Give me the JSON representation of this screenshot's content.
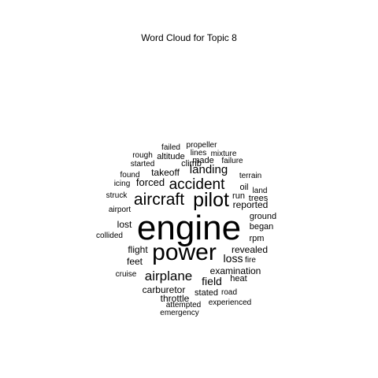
{
  "chart_data": {
    "type": "wordcloud",
    "title": "Word Cloud for Topic 8",
    "words": [
      {
        "text": "engine",
        "weight": 100
      },
      {
        "text": "power",
        "weight": 70
      },
      {
        "text": "pilot",
        "weight": 55
      },
      {
        "text": "aircraft",
        "weight": 50
      },
      {
        "text": "accident",
        "weight": 45
      },
      {
        "text": "airplane",
        "weight": 40
      },
      {
        "text": "landing",
        "weight": 35
      },
      {
        "text": "field",
        "weight": 32
      },
      {
        "text": "forced",
        "weight": 30
      },
      {
        "text": "loss",
        "weight": 30
      },
      {
        "text": "takeoff",
        "weight": 25
      },
      {
        "text": "examination",
        "weight": 25
      },
      {
        "text": "revealed",
        "weight": 25
      },
      {
        "text": "carburetor",
        "weight": 25
      },
      {
        "text": "flight",
        "weight": 24
      },
      {
        "text": "feet",
        "weight": 24
      },
      {
        "text": "lost",
        "weight": 24
      },
      {
        "text": "throttle",
        "weight": 24
      },
      {
        "text": "reported",
        "weight": 22
      },
      {
        "text": "run",
        "weight": 22
      },
      {
        "text": "stated",
        "weight": 22
      },
      {
        "text": "made",
        "weight": 20
      },
      {
        "text": "ground",
        "weight": 20
      },
      {
        "text": "began",
        "weight": 20
      },
      {
        "text": "heat",
        "weight": 20
      },
      {
        "text": "trees",
        "weight": 20
      },
      {
        "text": "oil",
        "weight": 20
      },
      {
        "text": "rpm",
        "weight": 20
      },
      {
        "text": "altitude",
        "weight": 20
      },
      {
        "text": "climb",
        "weight": 19
      },
      {
        "text": "started",
        "weight": 18
      },
      {
        "text": "rough",
        "weight": 18
      },
      {
        "text": "failed",
        "weight": 18
      },
      {
        "text": "propeller",
        "weight": 18
      },
      {
        "text": "lines",
        "weight": 18
      },
      {
        "text": "mixture",
        "weight": 18
      },
      {
        "text": "failure",
        "weight": 18
      },
      {
        "text": "terrain",
        "weight": 18
      },
      {
        "text": "land",
        "weight": 18
      },
      {
        "text": "found",
        "weight": 18
      },
      {
        "text": "icing",
        "weight": 18
      },
      {
        "text": "struck",
        "weight": 18
      },
      {
        "text": "airport",
        "weight": 18
      },
      {
        "text": "collided",
        "weight": 18
      },
      {
        "text": "fire",
        "weight": 18
      },
      {
        "text": "cruise",
        "weight": 18
      },
      {
        "text": "road",
        "weight": 18
      },
      {
        "text": "attempted",
        "weight": 18
      },
      {
        "text": "experienced",
        "weight": 18
      },
      {
        "text": "emergency",
        "weight": 18
      }
    ]
  }
}
